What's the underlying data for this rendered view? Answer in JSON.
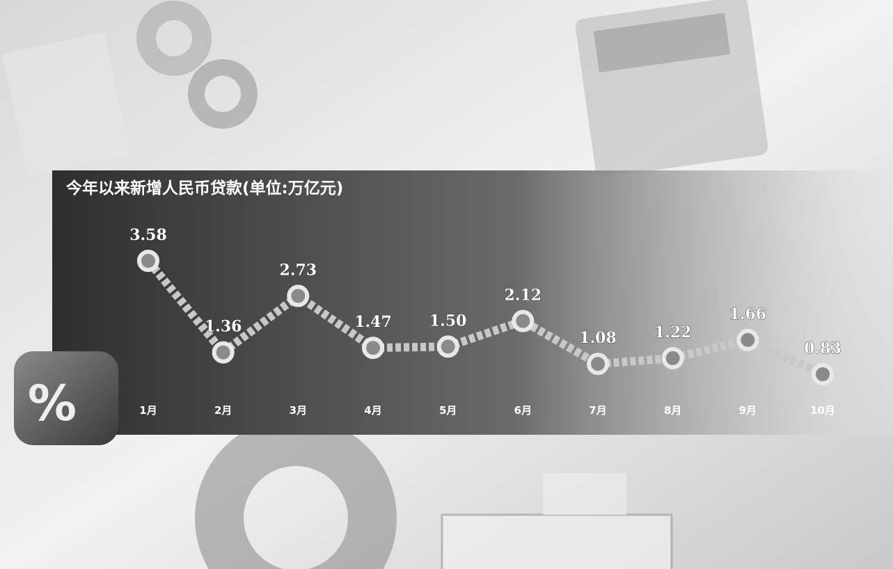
{
  "chart_data": {
    "type": "line",
    "title": "今年以来新增人民币贷款(单位:万亿元)",
    "categories": [
      "1月",
      "2月",
      "3月",
      "4月",
      "5月",
      "6月",
      "7月",
      "8月",
      "9月",
      "10月"
    ],
    "values": [
      3.58,
      1.36,
      2.73,
      1.47,
      1.5,
      2.12,
      1.08,
      1.22,
      1.66,
      0.83
    ],
    "value_labels": [
      "3.58",
      "1.36",
      "2.73",
      "1.47",
      "1.50",
      "2.12",
      "1.08",
      "1.22",
      "1.66",
      "0.83"
    ],
    "color": "#c8c8c8"
  }
}
